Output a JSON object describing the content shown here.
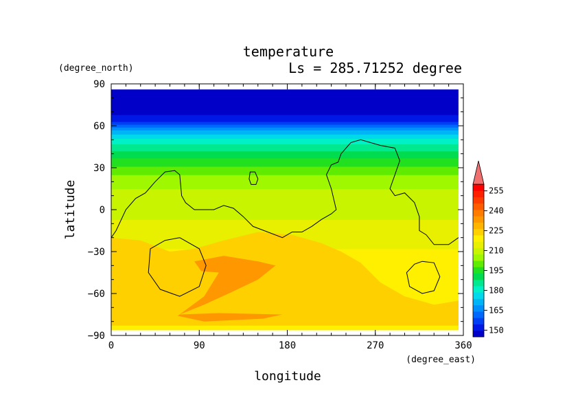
{
  "chart_data": {
    "type": "heatmap",
    "title": "temperature",
    "subtitle": "Ls = 285.71252 degree",
    "xlabel": "longitude",
    "ylabel": "latitude",
    "xunits": "(degree_east)",
    "yunits": "(degree_north)",
    "xlim": [
      0,
      360
    ],
    "ylim": [
      -90,
      90
    ],
    "data_extent": {
      "lon": [
        0,
        355
      ],
      "lat": [
        -86,
        86
      ]
    },
    "xticks": [
      "0",
      "90",
      "180",
      "270",
      "360"
    ],
    "yticks": [
      "−90",
      "−60",
      "−30",
      "0",
      "30",
      "60",
      "90"
    ],
    "colorbar": {
      "labels": [
        "150",
        "165",
        "180",
        "195",
        "210",
        "225",
        "240",
        "255"
      ],
      "levels": [
        145,
        150,
        155,
        160,
        165,
        170,
        175,
        180,
        185,
        190,
        195,
        200,
        205,
        210,
        215,
        220,
        225,
        230,
        235,
        240,
        245,
        250,
        255,
        260
      ],
      "colors": [
        "#0000c8",
        "#0018e6",
        "#0040f4",
        "#0068fc",
        "#0090fc",
        "#00b4f8",
        "#00d8ec",
        "#00f0c8",
        "#00e890",
        "#00dc50",
        "#20e020",
        "#60ec00",
        "#a0f800",
        "#c8f400",
        "#e8f000",
        "#fff000",
        "#ffd000",
        "#ffb400",
        "#ff9800",
        "#ff7c00",
        "#ff5c00",
        "#ff3c00",
        "#ff2000",
        "#ff0000"
      ],
      "extend_color": "#f07070"
    },
    "lat_profile": [
      {
        "lat": -86,
        "t": 224
      },
      {
        "lat": -75,
        "t": 224
      },
      {
        "lat": -65,
        "t": 222
      },
      {
        "lat": -50,
        "t": 225
      },
      {
        "lat": -38,
        "t": 224
      },
      {
        "lat": -25,
        "t": 219
      },
      {
        "lat": -10,
        "t": 216
      },
      {
        "lat": 0,
        "t": 213
      },
      {
        "lat": 10,
        "t": 211
      },
      {
        "lat": 20,
        "t": 209
      },
      {
        "lat": 30,
        "t": 201
      },
      {
        "lat": 40,
        "t": 192
      },
      {
        "lat": 50,
        "t": 182
      },
      {
        "lat": 55,
        "t": 174
      },
      {
        "lat": 60,
        "t": 163
      },
      {
        "lat": 64,
        "t": 153
      },
      {
        "lat": 70,
        "t": 148
      },
      {
        "lat": 86,
        "t": 147
      }
    ],
    "warm_regions": [
      {
        "label": "225-235 band",
        "temp": 227,
        "points": [
          [
            0,
            -20
          ],
          [
            30,
            -22
          ],
          [
            60,
            -30
          ],
          [
            85,
            -28
          ],
          [
            115,
            -22
          ],
          [
            150,
            -16
          ],
          [
            185,
            -18
          ],
          [
            215,
            -24
          ],
          [
            235,
            -30
          ],
          [
            255,
            -38
          ],
          [
            275,
            -52
          ],
          [
            300,
            -62
          ],
          [
            330,
            -68
          ],
          [
            355,
            -65
          ],
          [
            355,
            -86
          ],
          [
            0,
            -86
          ]
        ]
      },
      {
        "label": "235-240 core",
        "temp": 238,
        "points": [
          [
            85,
            -37
          ],
          [
            115,
            -33
          ],
          [
            150,
            -37
          ],
          [
            168,
            -40
          ],
          [
            150,
            -50
          ],
          [
            120,
            -60
          ],
          [
            95,
            -68
          ],
          [
            70,
            -75
          ],
          [
            110,
            -74
          ],
          [
            175,
            -75
          ],
          [
            155,
            -78
          ],
          [
            95,
            -80
          ],
          [
            68,
            -76
          ],
          [
            95,
            -62
          ],
          [
            110,
            -45
          ],
          [
            92,
            -44
          ]
        ]
      },
      {
        "label": "cool south rim",
        "temp": 220,
        "points": [
          [
            0,
            -86
          ],
          [
            355,
            -86
          ],
          [
            355,
            -83
          ],
          [
            0,
            -83
          ]
        ]
      }
    ],
    "topography_contours": [
      {
        "name": "continent-boundary",
        "points": [
          [
            0,
            -20
          ],
          [
            5,
            -15
          ],
          [
            15,
            0
          ],
          [
            25,
            8
          ],
          [
            35,
            12
          ],
          [
            45,
            20
          ],
          [
            55,
            27
          ],
          [
            65,
            28
          ],
          [
            70,
            25
          ],
          [
            72,
            10
          ],
          [
            76,
            5
          ],
          [
            85,
            0
          ],
          [
            105,
            0
          ],
          [
            115,
            3
          ],
          [
            125,
            1
          ],
          [
            135,
            -5
          ],
          [
            145,
            -12
          ],
          [
            160,
            -16
          ],
          [
            175,
            -20
          ],
          [
            185,
            -16
          ],
          [
            195,
            -16
          ],
          [
            205,
            -12
          ],
          [
            215,
            -7
          ],
          [
            225,
            -3
          ],
          [
            230,
            0
          ],
          [
            225,
            15
          ],
          [
            220,
            25
          ],
          [
            225,
            32
          ],
          [
            232,
            34
          ],
          [
            235,
            40
          ],
          [
            245,
            48
          ],
          [
            255,
            50
          ],
          [
            265,
            48
          ],
          [
            275,
            46
          ],
          [
            290,
            44
          ],
          [
            295,
            35
          ],
          [
            290,
            25
          ],
          [
            285,
            15
          ],
          [
            290,
            10
          ],
          [
            300,
            12
          ],
          [
            310,
            5
          ],
          [
            315,
            -5
          ],
          [
            315,
            -15
          ],
          [
            322,
            -18
          ],
          [
            330,
            -25
          ],
          [
            345,
            -25
          ],
          [
            355,
            -20
          ]
        ]
      },
      {
        "name": "hellas-basin",
        "points": [
          [
            70,
            -20
          ],
          [
            90,
            -28
          ],
          [
            97,
            -40
          ],
          [
            90,
            -55
          ],
          [
            70,
            -62
          ],
          [
            50,
            -57
          ],
          [
            38,
            -45
          ],
          [
            40,
            -28
          ],
          [
            55,
            -22
          ],
          [
            70,
            -20
          ]
        ]
      },
      {
        "name": "argyre-basin",
        "points": [
          [
            318,
            -37
          ],
          [
            330,
            -38
          ],
          [
            336,
            -48
          ],
          [
            330,
            -58
          ],
          [
            318,
            -60
          ],
          [
            305,
            -55
          ],
          [
            302,
            -45
          ],
          [
            310,
            -39
          ],
          [
            318,
            -37
          ]
        ]
      },
      {
        "name": "olympus-region",
        "points": [
          [
            150,
            22
          ],
          [
            147,
            27
          ],
          [
            142,
            27
          ],
          [
            141,
            22
          ],
          [
            143,
            18
          ],
          [
            148,
            18
          ],
          [
            150,
            22
          ]
        ]
      }
    ]
  }
}
